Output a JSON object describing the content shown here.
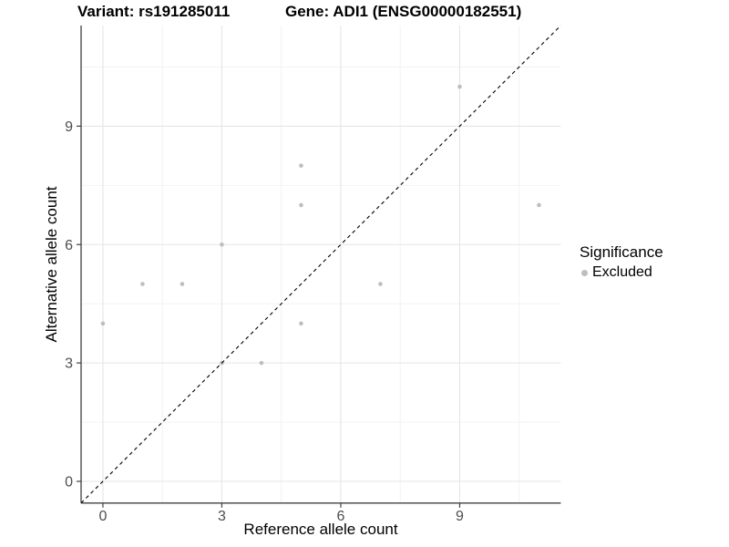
{
  "titles": {
    "variant": "Variant: rs191285011",
    "gene": "Gene: ADI1 (ENSG00000182551)"
  },
  "chart_data": {
    "type": "scatter",
    "xlabel": "Reference allele count",
    "ylabel": "Alternative allele count",
    "xlim": [
      -0.55,
      11.55
    ],
    "ylim": [
      -0.55,
      11.55
    ],
    "x_ticks": [
      0,
      3,
      6,
      9
    ],
    "y_ticks": [
      0,
      3,
      6,
      9
    ],
    "x_minor_ticks": [
      1.5,
      4.5,
      7.5,
      10.5
    ],
    "y_minor_ticks": [
      1.5,
      4.5,
      7.5,
      10.5
    ],
    "series": [
      {
        "name": "Excluded",
        "color": "#bebebe",
        "points": [
          [
            0,
            4
          ],
          [
            1,
            5
          ],
          [
            2,
            5
          ],
          [
            3,
            3
          ],
          [
            3,
            6
          ],
          [
            4,
            3
          ],
          [
            5,
            4
          ],
          [
            5,
            7
          ],
          [
            5,
            8
          ],
          [
            7,
            5
          ],
          [
            9,
            10
          ],
          [
            11,
            7
          ]
        ]
      }
    ],
    "abline": {
      "slope": 1,
      "intercept": 0,
      "line_style": "dashed",
      "color": "#000000"
    },
    "legend": {
      "position": "right",
      "title": "Significance",
      "items": [
        {
          "label": "Excluded",
          "color": "#bebebe"
        }
      ]
    },
    "grid": {
      "major_color": "#e5e5e5",
      "minor_color": "#f1f1f1"
    },
    "axis": {
      "line_color": "#404040",
      "tick_color": "#404040",
      "tick_label_color": "#4d4d4d"
    }
  }
}
